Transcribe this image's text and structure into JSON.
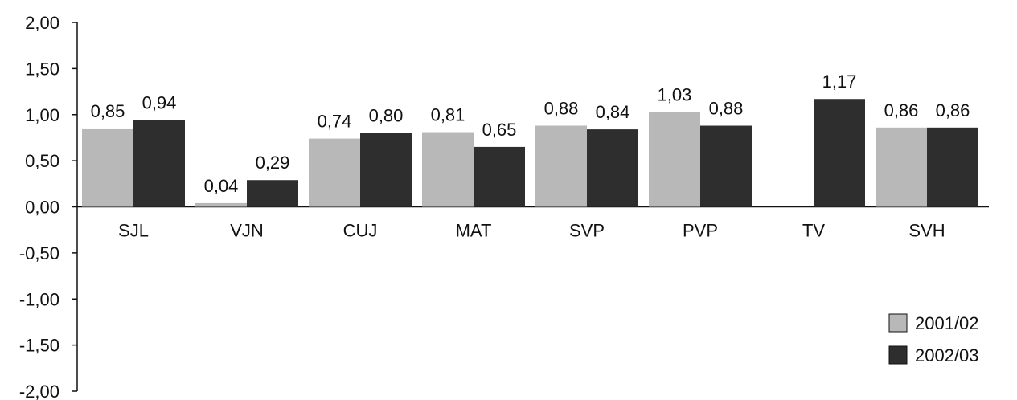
{
  "chart_data": {
    "type": "bar",
    "categories": [
      "SJL",
      "VJN",
      "CUJ",
      "MAT",
      "SVP",
      "PVP",
      "TV",
      "SVH"
    ],
    "series": [
      {
        "name": "2001/02",
        "color": "#b8b8b8",
        "values": [
          0.85,
          0.04,
          0.74,
          0.81,
          0.88,
          1.03,
          null,
          0.86
        ],
        "labels": [
          "0,85",
          "0,04",
          "0,74",
          "0,81",
          "0,88",
          "1,03",
          "",
          "0,86"
        ]
      },
      {
        "name": "2002/03",
        "color": "#2e2e2e",
        "values": [
          0.94,
          0.29,
          0.8,
          0.65,
          0.84,
          0.88,
          1.17,
          0.86
        ],
        "labels": [
          "0,94",
          "0,29",
          "0,80",
          "0,65",
          "0,84",
          "0,88",
          "1,17",
          "0,86"
        ]
      }
    ],
    "ylim": [
      -2.0,
      2.0
    ],
    "yticks": [
      2.0,
      1.5,
      1.0,
      0.5,
      0.0,
      -0.5,
      -1.0,
      -1.5,
      -2.0
    ],
    "ytick_labels": [
      "2,00",
      "1,50",
      "1,00",
      "0,50",
      "0,00",
      "-0,50",
      "-1,00",
      "-1,50",
      "-2,00"
    ],
    "title": "",
    "xlabel": "",
    "ylabel": "",
    "grid": false,
    "legend_position": "bottom-right"
  }
}
